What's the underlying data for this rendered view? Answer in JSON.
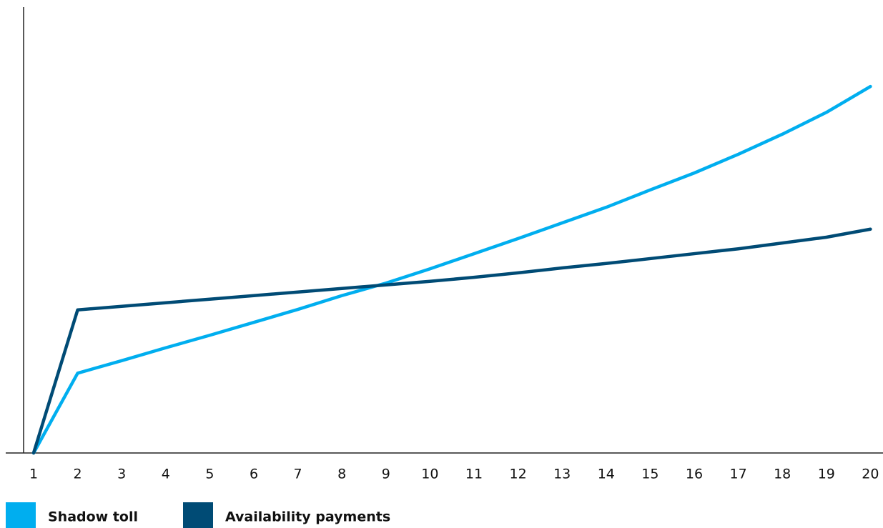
{
  "chart_data": {
    "type": "line",
    "categories": [
      "1",
      "2",
      "3",
      "4",
      "5",
      "6",
      "7",
      "8",
      "9",
      "10",
      "11",
      "12",
      "13",
      "14",
      "15",
      "16",
      "17",
      "18",
      "19",
      "20"
    ],
    "series": [
      {
        "name": "Shadow toll",
        "color": "#00aeef",
        "values": [
          0,
          17.9,
          20.7,
          23.6,
          26.4,
          29.3,
          32.2,
          35.3,
          38.1,
          41.3,
          44.7,
          48.1,
          51.6,
          55.1,
          59.0,
          62.8,
          67.0,
          71.5,
          76.4,
          82.2
        ]
      },
      {
        "name": "Availability payments",
        "color": "#004b75",
        "values": [
          0,
          32.1,
          32.9,
          33.7,
          34.5,
          35.3,
          36.1,
          36.9,
          37.7,
          38.5,
          39.4,
          40.4,
          41.5,
          42.5,
          43.6,
          44.7,
          45.8,
          47.1,
          48.4,
          50.2
        ]
      }
    ],
    "ylim": [
      0,
      100
    ],
    "legend": "bottom-left"
  }
}
